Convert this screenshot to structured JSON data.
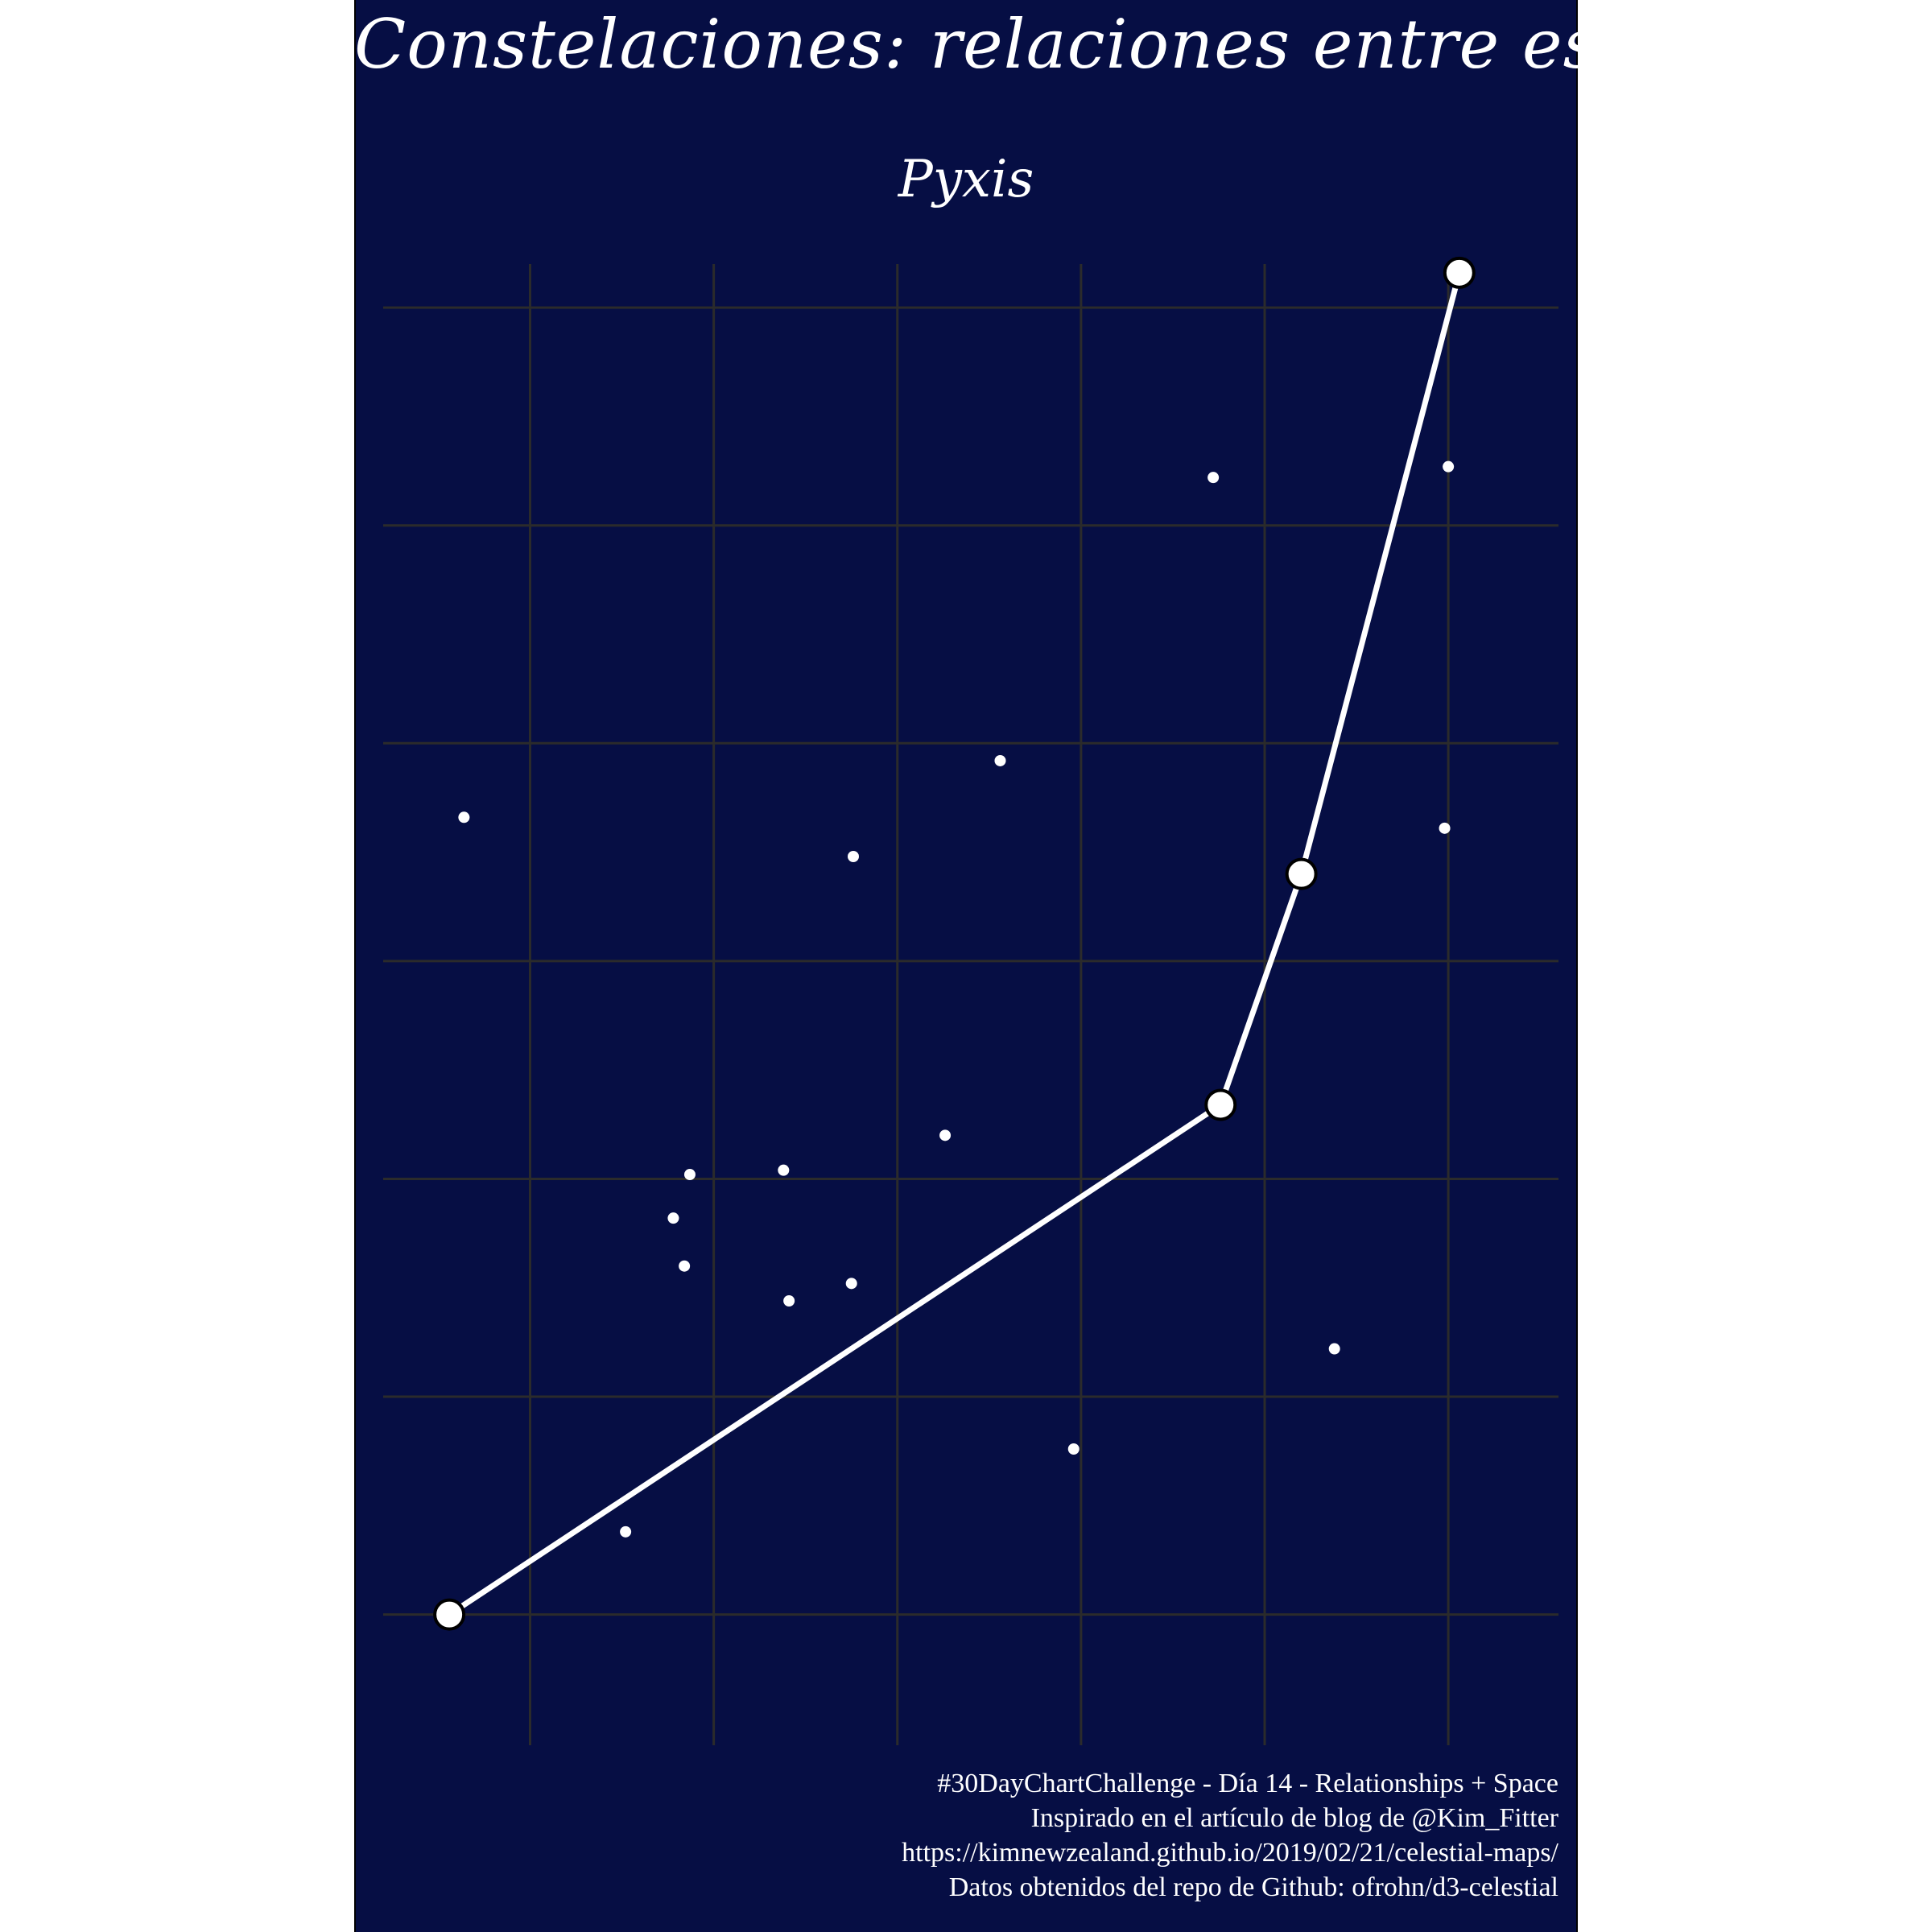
{
  "chart_data": {
    "type": "scatter",
    "title": "Constelaciones: relaciones entre estrellas",
    "subtitle": "Pyxis",
    "grid": true,
    "xlim": [
      0,
      32
    ],
    "ylim": [
      0,
      34
    ],
    "x_grid": [
      4,
      9,
      14,
      19,
      24,
      29
    ],
    "y_grid": [
      3,
      8,
      13,
      18,
      23,
      28,
      33
    ],
    "stars": [
      {
        "x": 2.2,
        "y": 21.3
      },
      {
        "x": 6.6,
        "y": 4.9
      },
      {
        "x": 7.9,
        "y": 12.1
      },
      {
        "x": 8.35,
        "y": 13.1
      },
      {
        "x": 8.2,
        "y": 11.0
      },
      {
        "x": 10.9,
        "y": 13.2
      },
      {
        "x": 11.05,
        "y": 10.2
      },
      {
        "x": 12.8,
        "y": 20.4
      },
      {
        "x": 12.75,
        "y": 10.6
      },
      {
        "x": 15.3,
        "y": 14.0
      },
      {
        "x": 16.8,
        "y": 22.6
      },
      {
        "x": 18.8,
        "y": 6.8
      },
      {
        "x": 22.6,
        "y": 29.1
      },
      {
        "x": 25.9,
        "y": 9.1
      },
      {
        "x": 29.0,
        "y": 29.35
      },
      {
        "x": 28.9,
        "y": 21.05
      }
    ],
    "constellation_line": [
      {
        "x": 1.8,
        "y": 3.0
      },
      {
        "x": 22.8,
        "y": 14.7
      },
      {
        "x": 25.0,
        "y": 20.0
      },
      {
        "x": 29.3,
        "y": 33.8
      }
    ],
    "colors": {
      "background": "#060e44",
      "grid": "#2b2b2b",
      "star": "#ffffff",
      "line": "#ffffff",
      "marker_outline": "#000000"
    }
  },
  "caption": {
    "line1": "#30DayChartChallenge - Día 14 - Relationships + Space",
    "line2": "Inspirado en el artículo de blog de @Kim_Fitter",
    "line3": "https://kimnewzealand.github.io/2019/02/21/celestial-maps/",
    "line4": "Datos obtenidos del repo de Github: ofrohn/d3-celestial"
  }
}
